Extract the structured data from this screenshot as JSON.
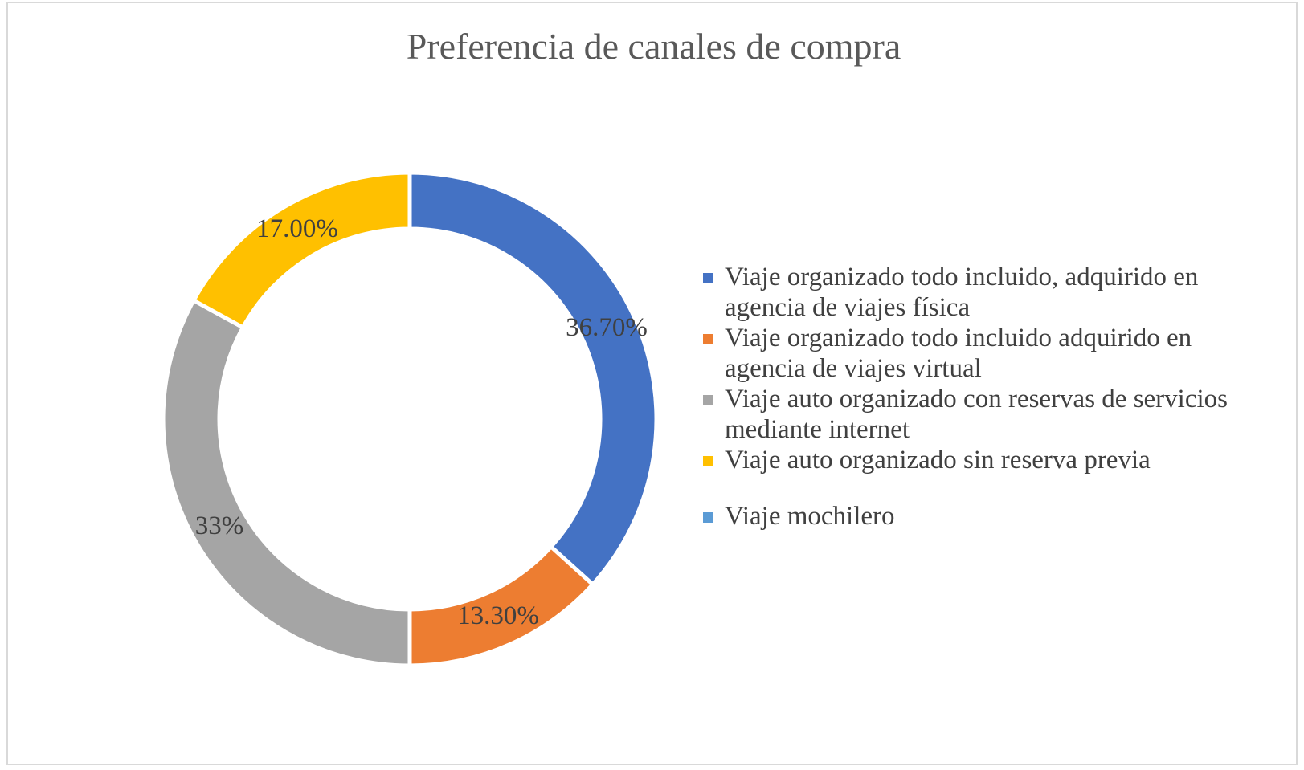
{
  "chart_data": {
    "type": "pie",
    "variant": "doughnut",
    "title": "Preferencia de canales de compra",
    "categories": [
      "Viaje organizado todo incluido, adquirido en agencia de viajes física",
      "Viaje organizado todo incluido adquirido en agencia de viajes virtual",
      "Viaje auto organizado con reservas de servicios mediante internet",
      "Viaje auto organizado sin reserva previa",
      "Viaje mochilero"
    ],
    "values": [
      36.7,
      13.3,
      33.0,
      17.0,
      0
    ],
    "data_labels": [
      "36.70%",
      "13.30%",
      "33%",
      "17.00%",
      ""
    ],
    "colors": [
      "#4472C4",
      "#ED7D31",
      "#A5A5A5",
      "#FFC000",
      "#5B9BD5"
    ],
    "legend_position": "right"
  }
}
